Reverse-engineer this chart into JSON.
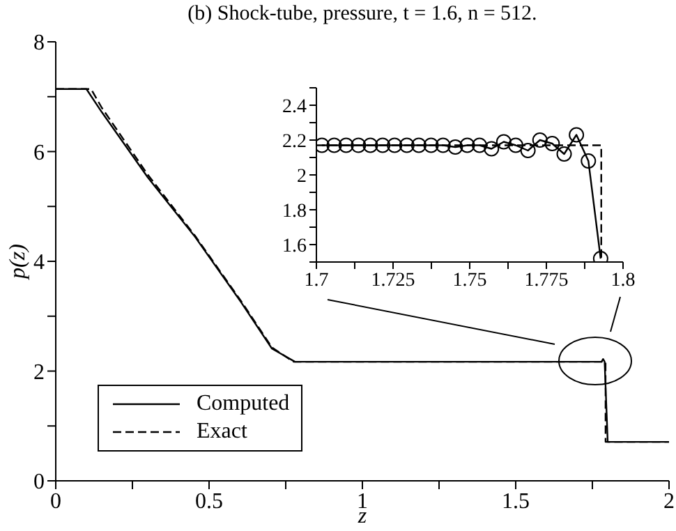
{
  "chart_data": [
    {
      "type": "line",
      "title": "(b) Shock-tube, pressure, t = 1.6, n = 512.",
      "xlabel": "z",
      "ylabel": "p(z)",
      "xlim": [
        0,
        2
      ],
      "ylim": [
        0,
        8
      ],
      "xticks": [
        0,
        {
          "value": 0.25,
          "label": null
        },
        0.5,
        {
          "value": 0.75,
          "label": null
        },
        1,
        {
          "value": 1.25,
          "label": null
        },
        1.5,
        {
          "value": 1.75,
          "label": null
        },
        2
      ],
      "yticks": [
        0,
        {
          "value": 1,
          "label": null
        },
        2,
        {
          "value": 3,
          "label": null
        },
        4,
        {
          "value": 5,
          "label": null
        },
        6,
        {
          "value": 7,
          "label": null
        },
        8
      ],
      "grid": false,
      "legend": "bottom left",
      "marker": "none",
      "series": [
        {
          "name": "Computed",
          "color": "#000000",
          "line_style": "solid",
          "x": [
            0,
            0.1,
            0.15,
            0.3,
            0.455,
            0.605,
            0.705,
            0.78,
            1.78,
            1.785,
            1.79,
            1.8,
            2
          ],
          "values": [
            7.14,
            7.14,
            6.72,
            5.53,
            4.44,
            3.25,
            2.41,
            2.17,
            2.17,
            2.22,
            2.17,
            0.71,
            0.71
          ]
        },
        {
          "name": "Exact",
          "color": "#000000",
          "line_style": "dashed",
          "x": [
            0,
            0.115,
            0.15,
            0.3,
            0.455,
            0.605,
            0.705,
            0.775,
            1.793,
            1.793,
            2
          ],
          "values": [
            7.14,
            7.14,
            6.8,
            5.58,
            4.46,
            3.27,
            2.43,
            2.17,
            2.17,
            0.71,
            0.71
          ]
        }
      ]
    },
    {
      "type": "line",
      "xlim": [
        1.7,
        1.8
      ],
      "ylim": [
        1.5,
        2.5
      ],
      "xticks": [
        1.7,
        {
          "value": 1.7125,
          "label": null
        },
        1.725,
        {
          "value": 1.7375,
          "label": null
        },
        1.75,
        {
          "value": 1.7625,
          "label": null
        },
        1.775,
        {
          "value": 1.7875,
          "label": null
        },
        1.8
      ],
      "yticks": [
        {
          "value": 1.5,
          "label": null
        },
        1.6,
        {
          "value": 1.7,
          "label": null
        },
        1.8,
        {
          "value": 1.9,
          "label": null
        },
        2,
        {
          "value": 2.1,
          "label": null
        },
        2.2,
        {
          "value": 2.3,
          "label": null
        },
        2.4,
        {
          "value": 2.5,
          "label": null
        }
      ],
      "grid": false,
      "legend": false,
      "series": [
        {
          "color": "#000000",
          "line_style": "solid",
          "marker": "circle",
          "x": [
            1.7018,
            1.7058,
            1.7097,
            1.7137,
            1.7176,
            1.7216,
            1.7255,
            1.7295,
            1.7334,
            1.7374,
            1.7413,
            1.7453,
            1.7492,
            1.7532,
            1.7571,
            1.7611,
            1.765,
            1.769,
            1.7729,
            1.7769,
            1.7808,
            1.7848,
            1.7887,
            1.7927
          ],
          "values": [
            2.17,
            2.17,
            2.17,
            2.17,
            2.17,
            2.17,
            2.17,
            2.17,
            2.17,
            2.17,
            2.17,
            2.16,
            2.17,
            2.17,
            2.15,
            2.19,
            2.17,
            2.14,
            2.2,
            2.18,
            2.12,
            2.23,
            2.08,
            1.52
          ]
        },
        {
          "color": "#000000",
          "line_style": "dashed",
          "marker": "none",
          "x": [
            1.7,
            1.7929,
            1.7929
          ],
          "values": [
            2.17,
            2.17,
            1.5
          ]
        }
      ]
    }
  ]
}
